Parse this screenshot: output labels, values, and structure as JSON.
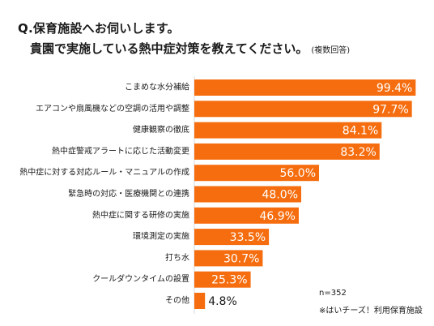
{
  "header": {
    "line1": "Q.保育施設へお伺いします。",
    "line2": "貴園で実施している熱中症対策を教えてください。",
    "note": "(複数回答)"
  },
  "footer": {
    "n": "n=352",
    "source": "※はいチーズ！利用保育施設"
  },
  "chart_data": {
    "type": "bar",
    "orientation": "horizontal",
    "categories": [
      "こまめな水分補給",
      "エアコンや扇風機などの空調の活用や調整",
      "健康観察の徹底",
      "熱中症警戒アラートに応じた活動変更",
      "熱中症に対する対応ルール・マニュアルの作成",
      "緊急時の対応・医療機関との連携",
      "熱中症に関する研修の実施",
      "環境測定の実施",
      "打ち水",
      "クールダウンタイムの設置",
      "その他"
    ],
    "values": [
      99.4,
      97.7,
      84.1,
      83.2,
      56.0,
      48.0,
      46.9,
      33.5,
      30.7,
      25.3,
      4.8
    ],
    "value_labels": [
      "99.4%",
      "97.7%",
      "84.1%",
      "83.2%",
      "56.0%",
      "48.0%",
      "46.9%",
      "33.5%",
      "30.7%",
      "25.3%",
      "4.8%"
    ],
    "xlim": [
      0,
      100
    ],
    "bar_color": "#f56d0e",
    "grid": false,
    "legend": "none"
  }
}
